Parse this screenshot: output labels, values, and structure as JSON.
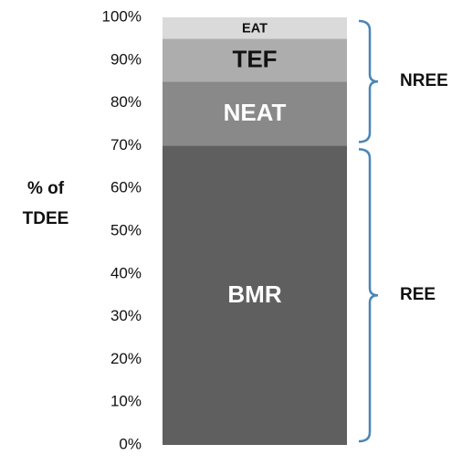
{
  "chart_data": {
    "type": "stacked_bar",
    "y_label": [
      "% of",
      "TDEE"
    ],
    "ylim": [
      0,
      100
    ],
    "yticks": [
      {
        "value": 0,
        "label": "0%"
      },
      {
        "value": 10,
        "label": "10%"
      },
      {
        "value": 20,
        "label": "20%"
      },
      {
        "value": 30,
        "label": "30%"
      },
      {
        "value": 40,
        "label": "40%"
      },
      {
        "value": 50,
        "label": "50%"
      },
      {
        "value": 60,
        "label": "60%"
      },
      {
        "value": 70,
        "label": "70%"
      },
      {
        "value": 80,
        "label": "80%"
      },
      {
        "value": 90,
        "label": "90%"
      },
      {
        "value": 100,
        "label": "100%"
      }
    ],
    "series": [
      {
        "name": "BMR",
        "color": "#5f5f5f",
        "label_color": "#ffffff",
        "values": [
          70
        ]
      },
      {
        "name": "NEAT",
        "color": "#898989",
        "label_color": "#ffffff",
        "values": [
          15
        ]
      },
      {
        "name": "TEF",
        "color": "#adadad",
        "label_color": "#111111",
        "values": [
          10
        ]
      },
      {
        "name": "EAT",
        "color": "#dadada",
        "label_color": "#111111",
        "values": [
          5
        ]
      }
    ],
    "brackets": [
      {
        "label": "NREE",
        "from": 70,
        "to": 100
      },
      {
        "label": "REE",
        "from": 0,
        "to": 70
      }
    ],
    "bracket_color": "#4a86b8"
  }
}
